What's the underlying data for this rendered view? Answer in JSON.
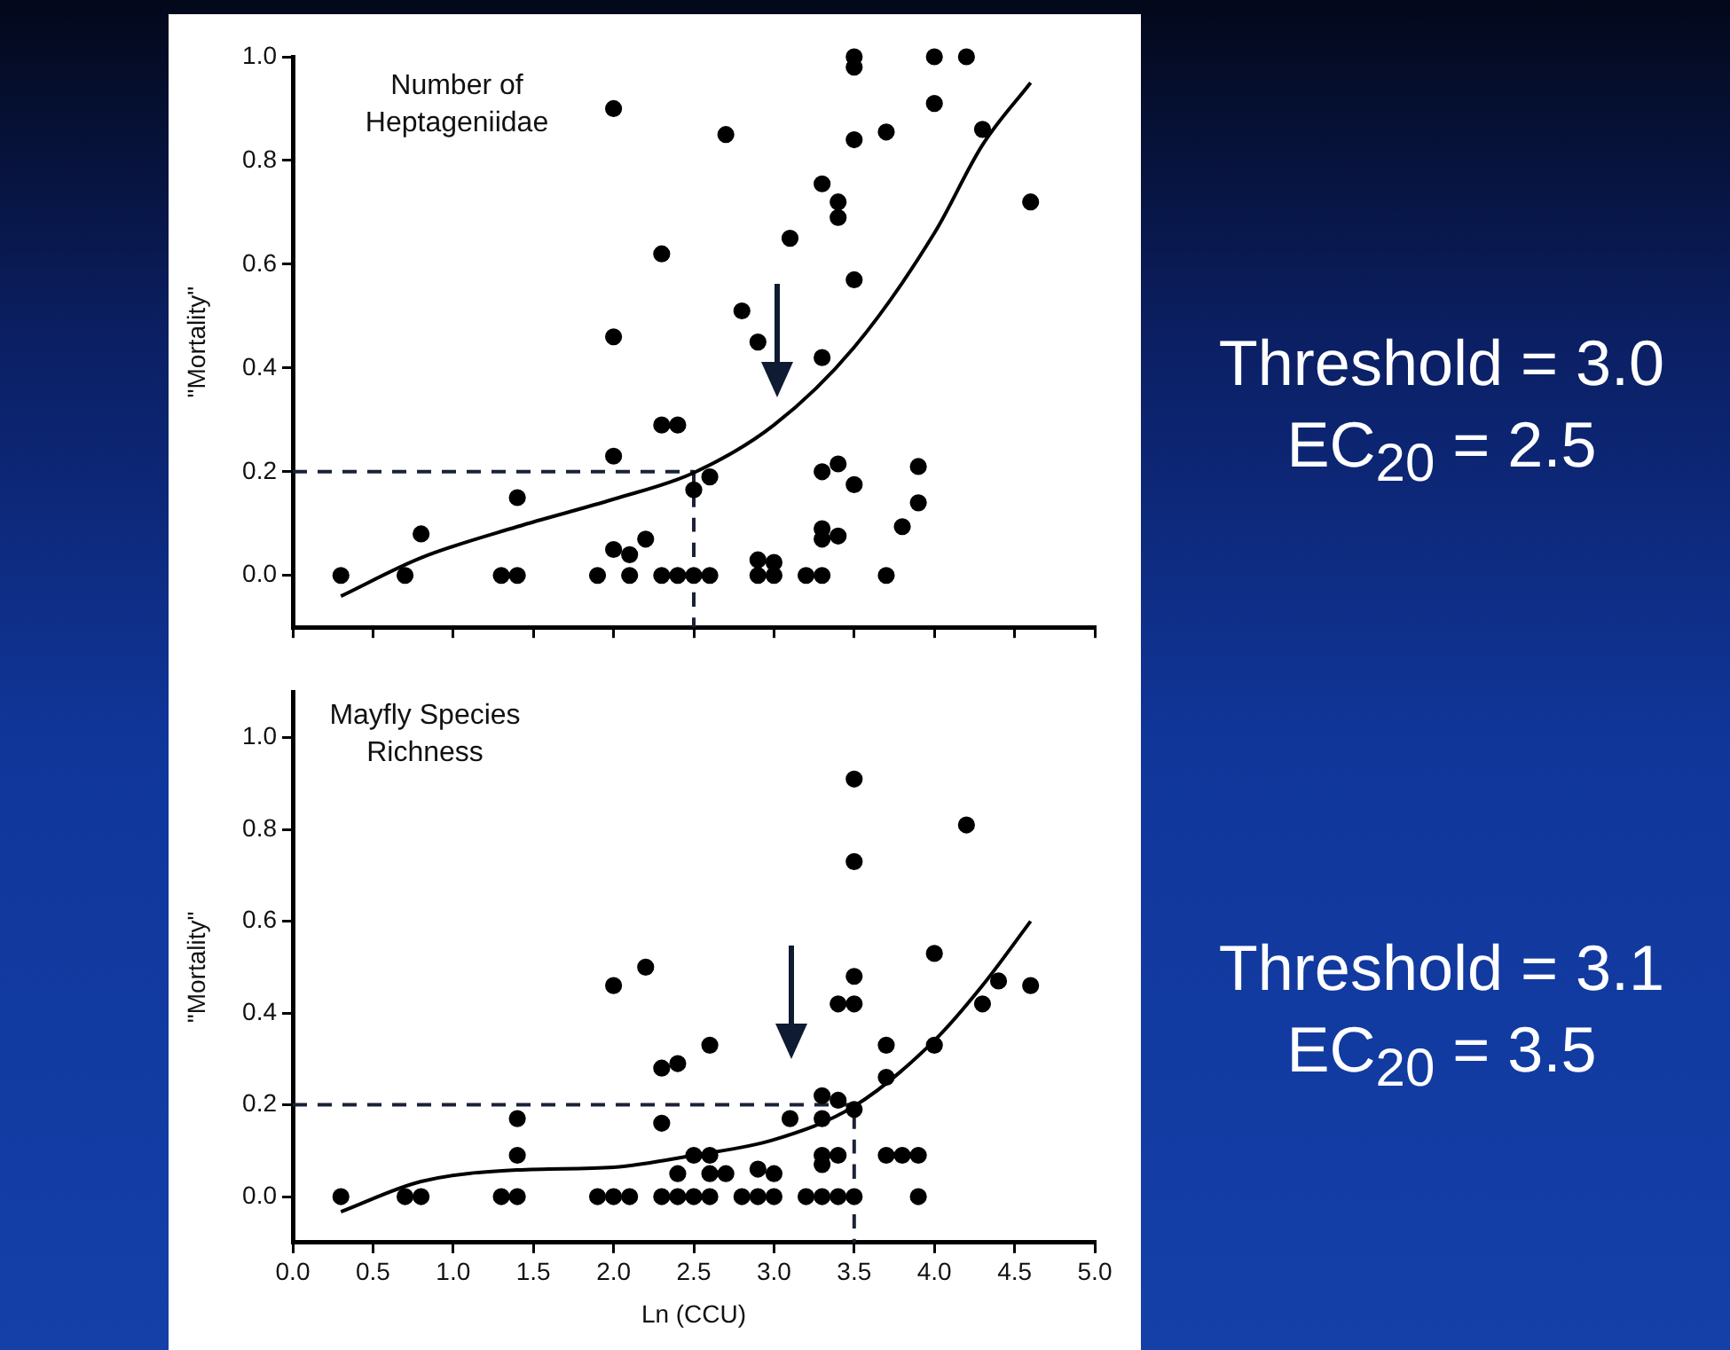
{
  "chart_data": [
    {
      "type": "scatter",
      "title": "Number of Heptageniidae",
      "ylabel": "\"Mortality\"",
      "annotations": [
        "Threshold = 3.0",
        "EC$_{20}$ = 2.5"
      ],
      "xlim": [
        0,
        5
      ],
      "ylim": [
        -0.1,
        1.0
      ],
      "xticks": [
        0,
        0.5,
        1,
        1.5,
        2,
        2.5,
        3,
        3.5,
        4,
        4.5,
        5
      ],
      "yticks": [
        {
          "value": 0,
          "label": "0.0"
        },
        {
          "value": 0.2,
          "label": "0.2"
        },
        {
          "value": 0.4,
          "label": "0.4"
        },
        {
          "value": 0.6,
          "label": "0.6"
        },
        {
          "value": 0.8,
          "label": "0.8"
        },
        {
          "value": 1,
          "label": "1.0"
        }
      ],
      "tick_labels": "y",
      "series": [
        {
          "type": "scatter",
          "marker": "circle",
          "color": "#000000",
          "x": [
            0.3,
            0.7,
            0.8,
            1.3,
            1.4,
            1.4,
            1.9,
            2.0,
            2.0,
            2.0,
            2.0,
            2.1,
            2.1,
            2.2,
            2.3,
            2.3,
            2.3,
            2.4,
            2.4,
            2.5,
            2.6,
            2.5,
            2.6,
            2.7,
            2.8,
            2.9,
            2.9,
            3.0,
            2.9,
            3.0,
            3.1,
            3.2,
            3.3,
            3.3,
            3.3,
            3.3,
            3.3,
            3.3,
            3.4,
            3.4,
            3.4,
            3.4,
            3.5,
            3.5,
            3.5,
            3.5,
            3.5,
            3.7,
            3.7,
            3.8,
            3.9,
            3.9,
            4.0,
            4.0,
            4.2,
            4.3,
            4.6
          ],
          "values": [
            0,
            0,
            0.08,
            0,
            0,
            0.15,
            0,
            0.9,
            0.46,
            0.23,
            0.05,
            0.04,
            0,
            0.07,
            0,
            0.62,
            0.29,
            0.29,
            0,
            0,
            0,
            0.165,
            0.19,
            0.85,
            0.51,
            0.45,
            0.03,
            0.025,
            0,
            0,
            0.65,
            0,
            0,
            0.755,
            0.42,
            0.2,
            0.09,
            0.07,
            0.72,
            0.69,
            0.215,
            0.076,
            1.0,
            0.98,
            0.84,
            0.57,
            0.175,
            0.855,
            0,
            0.094,
            0.21,
            0.14,
            1.0,
            0.91,
            1.0,
            0.86,
            0.72
          ]
        },
        {
          "type": "line",
          "marker": "none",
          "line_style": "solid",
          "color": "#000000",
          "x": [
            0.3,
            0.8,
            1.4,
            2.0,
            2.5,
            3.0,
            3.5,
            4.0,
            4.3,
            4.6
          ],
          "values": [
            -0.04,
            0.034,
            0.094,
            0.147,
            0.198,
            0.29,
            0.44,
            0.66,
            0.83,
            0.95
          ]
        },
        {
          "type": "line",
          "marker": "none",
          "line_style": "dashed",
          "color": "#1a2238",
          "x": [
            0,
            2.5,
            2.5
          ],
          "values": [
            0.2,
            0.2,
            -0.1
          ]
        }
      ]
    },
    {
      "type": "scatter",
      "title": "Mayfly Species Richness",
      "xlabel": "Ln (CCU)",
      "ylabel": "\"Mortality\"",
      "annotations": [
        "Threshold = 3.1",
        "EC$_{20}$ = 3.5"
      ],
      "xlim": [
        0,
        5
      ],
      "ylim": [
        -0.1,
        1.1
      ],
      "xticks": [
        {
          "value": 0,
          "label": "0.0"
        },
        {
          "value": 0.5,
          "label": "0.5"
        },
        {
          "value": 1,
          "label": "1.0"
        },
        {
          "value": 1.5,
          "label": "1.5"
        },
        {
          "value": 2,
          "label": "2.0"
        },
        {
          "value": 2.5,
          "label": "2.5"
        },
        {
          "value": 3,
          "label": "3.0"
        },
        {
          "value": 3.5,
          "label": "3.5"
        },
        {
          "value": 4,
          "label": "4.0"
        },
        {
          "value": 4.5,
          "label": "4.5"
        },
        {
          "value": 5,
          "label": "5.0"
        }
      ],
      "yticks": [
        {
          "value": 0,
          "label": "0.0"
        },
        {
          "value": 0.2,
          "label": "0.2"
        },
        {
          "value": 0.4,
          "label": "0.4"
        },
        {
          "value": 0.6,
          "label": "0.6"
        },
        {
          "value": 0.8,
          "label": "0.8"
        },
        {
          "value": 1,
          "label": "1.0"
        }
      ],
      "series": [
        {
          "type": "scatter",
          "marker": "circle",
          "color": "#000000",
          "x": [
            0.3,
            0.7,
            0.8,
            1.3,
            1.4,
            1.4,
            1.4,
            1.9,
            2.0,
            2.1,
            2.0,
            2.2,
            2.3,
            2.3,
            2.3,
            3.5,
            4.2,
            3.5,
            4.0,
            3.5,
            4.4,
            4.6,
            3.4,
            3.5,
            4.3,
            2.6,
            3.7,
            4.0,
            2.4,
            3.7,
            3.3,
            3.4,
            3.5,
            3.3,
            3.1,
            2.5,
            2.6,
            3.3,
            3.3,
            3.4,
            3.7,
            3.8,
            3.9,
            2.4,
            2.6,
            2.7,
            2.9,
            3.0,
            2.4,
            2.5,
            2.6,
            2.8,
            2.9,
            3.0,
            3.2,
            3.3,
            3.4,
            3.5,
            3.9
          ],
          "values": [
            0,
            0,
            0,
            0,
            0,
            0.09,
            0.17,
            0,
            0,
            0,
            0.46,
            0.5,
            0,
            0.28,
            0.16,
            0.91,
            0.81,
            0.73,
            0.53,
            0.48,
            0.47,
            0.46,
            0.42,
            0.42,
            0.42,
            0.33,
            0.33,
            0.33,
            0.29,
            0.26,
            0.22,
            0.21,
            0.19,
            0.17,
            0.17,
            0.09,
            0.09,
            0.09,
            0.07,
            0.09,
            0.09,
            0.09,
            0.09,
            0.05,
            0.05,
            0.05,
            0.06,
            0.05,
            0,
            0,
            0,
            0,
            0,
            0,
            0,
            0,
            0,
            0,
            0
          ]
        },
        {
          "type": "line",
          "marker": "none",
          "line_style": "solid",
          "color": "#000000",
          "x": [
            0.3,
            0.8,
            1.4,
            2.0,
            2.5,
            3.0,
            3.5,
            4.0,
            4.3,
            4.6
          ],
          "values": [
            -0.033,
            0.033,
            0.058,
            0.064,
            0.09,
            0.124,
            0.197,
            0.34,
            0.46,
            0.6
          ]
        },
        {
          "type": "line",
          "marker": "none",
          "line_style": "dashed",
          "color": "#1a2238",
          "x": [
            0,
            3.5,
            3.5
          ],
          "values": [
            0.2,
            0.2,
            -0.1
          ]
        }
      ]
    }
  ]
}
